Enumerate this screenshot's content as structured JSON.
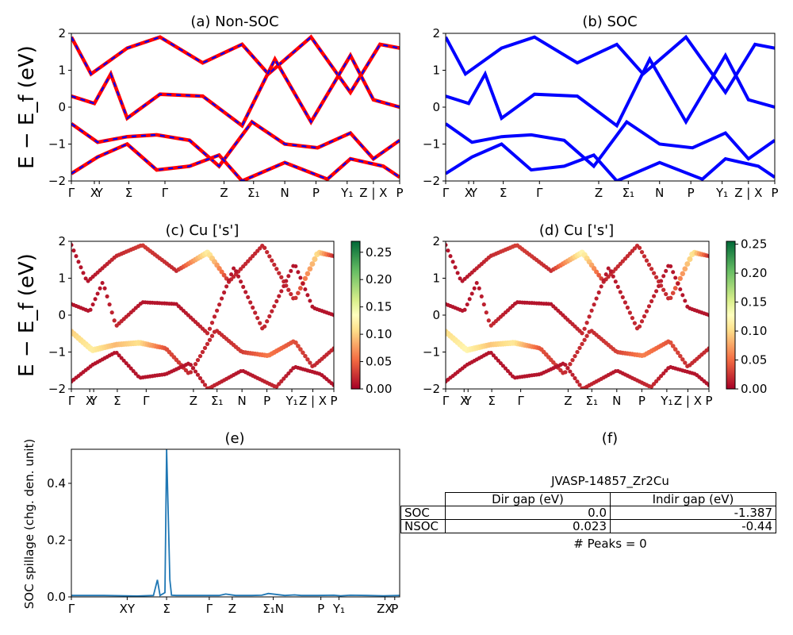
{
  "colors": {
    "nonsoc_red": "#ff0000",
    "soc_blue": "#0000ff",
    "spillage_line": "#1f77b4",
    "colormap": "RdYlGn"
  },
  "chart_data": [
    {
      "id": "a",
      "type": "line",
      "title": "(a) Non-SOC",
      "ylabel": "E − E_f (eV)",
      "ylim": [
        -2,
        2
      ],
      "yticks": [
        "−2",
        "−1",
        "0",
        "1",
        "2"
      ],
      "kpath_labels": [
        "Γ",
        "X",
        "Y",
        "Σ",
        "Γ",
        "Z",
        "Σ₁",
        "N",
        "P",
        "Y₁",
        "Z | X",
        "P"
      ],
      "series": [
        {
          "values_desc": "band_1",
          "x": [
            0,
            0.06,
            0.17,
            0.27,
            0.4,
            0.52,
            0.6,
            0.73,
            0.85,
            0.94,
            1.0
          ],
          "y": [
            1.9,
            0.9,
            1.6,
            1.9,
            1.2,
            1.7,
            0.9,
            1.9,
            0.4,
            1.7,
            1.6
          ]
        },
        {
          "values_desc": "band_2",
          "x": [
            0,
            0.07,
            0.12,
            0.17,
            0.27,
            0.4,
            0.52,
            0.62,
            0.73,
            0.85,
            0.92,
            1.0
          ],
          "y": [
            0.3,
            0.1,
            0.9,
            -0.3,
            0.35,
            0.3,
            -0.5,
            1.3,
            -0.4,
            1.4,
            0.2,
            0.0
          ]
        },
        {
          "values_desc": "band_3",
          "x": [
            0,
            0.08,
            0.17,
            0.26,
            0.36,
            0.45,
            0.55,
            0.65,
            0.75,
            0.85,
            0.92,
            1.0
          ],
          "y": [
            -0.45,
            -0.95,
            -0.8,
            -0.75,
            -0.9,
            -1.6,
            -0.4,
            -1.0,
            -1.1,
            -0.7,
            -1.4,
            -0.9
          ]
        },
        {
          "values_desc": "band_4",
          "x": [
            0,
            0.08,
            0.17,
            0.26,
            0.36,
            0.45,
            0.52,
            0.65,
            0.78,
            0.85,
            0.95,
            1.0
          ],
          "y": [
            -1.8,
            -1.35,
            -1.0,
            -1.7,
            -1.6,
            -1.3,
            -2.0,
            -1.5,
            -1.95,
            -1.4,
            -1.6,
            -1.9
          ]
        }
      ]
    },
    {
      "id": "b",
      "type": "line",
      "title": "(b) SOC",
      "ylim": [
        -2,
        2
      ],
      "yticks": [
        "−2",
        "−1",
        "0",
        "1",
        "2"
      ],
      "kpath_labels": [
        "Γ",
        "X",
        "Y",
        "Σ",
        "Γ",
        "Z",
        "Σ₁",
        "N",
        "P",
        "Y₁",
        "Z | X",
        "P"
      ],
      "series": [
        {
          "values_desc": "band_1",
          "x": [
            0,
            0.06,
            0.17,
            0.27,
            0.4,
            0.52,
            0.6,
            0.73,
            0.85,
            0.94,
            1.0
          ],
          "y": [
            1.9,
            0.9,
            1.6,
            1.9,
            1.2,
            1.7,
            0.9,
            1.9,
            0.4,
            1.7,
            1.6
          ]
        },
        {
          "values_desc": "band_2",
          "x": [
            0,
            0.07,
            0.12,
            0.17,
            0.27,
            0.4,
            0.52,
            0.62,
            0.73,
            0.85,
            0.92,
            1.0
          ],
          "y": [
            0.3,
            0.1,
            0.9,
            -0.3,
            0.35,
            0.3,
            -0.5,
            1.3,
            -0.4,
            1.4,
            0.2,
            0.0
          ]
        },
        {
          "values_desc": "band_3",
          "x": [
            0,
            0.08,
            0.17,
            0.26,
            0.36,
            0.45,
            0.55,
            0.65,
            0.75,
            0.85,
            0.92,
            1.0
          ],
          "y": [
            -0.45,
            -0.95,
            -0.8,
            -0.75,
            -0.9,
            -1.6,
            -0.4,
            -1.0,
            -1.1,
            -0.7,
            -1.4,
            -0.9
          ]
        },
        {
          "values_desc": "band_4",
          "x": [
            0,
            0.08,
            0.17,
            0.26,
            0.36,
            0.45,
            0.52,
            0.65,
            0.78,
            0.85,
            0.95,
            1.0
          ],
          "y": [
            -1.8,
            -1.35,
            -1.0,
            -1.7,
            -1.6,
            -1.3,
            -2.0,
            -1.5,
            -1.95,
            -1.4,
            -1.6,
            -1.9
          ]
        }
      ]
    },
    {
      "id": "c",
      "type": "scatter",
      "title": "(c)  Cu ['s']",
      "ylabel": "E − E_f (eV)",
      "ylim": [
        -2,
        2
      ],
      "yticks": [
        "−2",
        "−1",
        "0",
        "1",
        "2"
      ],
      "kpath_labels": [
        "Γ",
        "X",
        "Y",
        "Σ",
        "Γ",
        "Z",
        "Σ₁",
        "N",
        "P",
        "Y₁",
        "Z | X",
        "P"
      ],
      "colorbar": {
        "min": 0.0,
        "max": 0.27,
        "ticks": [
          "0.00",
          "0.05",
          "0.10",
          "0.15",
          "0.20",
          "0.25"
        ]
      },
      "series": [
        {
          "values_desc": "band_1",
          "x": [
            0,
            0.06,
            0.17,
            0.27,
            0.4,
            0.52,
            0.6,
            0.73,
            0.85,
            0.94,
            1.0
          ],
          "y": [
            1.9,
            0.9,
            1.6,
            1.9,
            1.2,
            1.7,
            0.9,
            1.9,
            0.4,
            1.7,
            1.6
          ],
          "w": [
            0.01,
            0.01,
            0.02,
            0.03,
            0.02,
            0.12,
            0.02,
            0.02,
            0.02,
            0.11,
            0.02
          ]
        },
        {
          "values_desc": "band_2",
          "x": [
            0,
            0.07,
            0.12,
            0.17,
            0.27,
            0.4,
            0.52,
            0.62,
            0.73,
            0.85,
            0.92,
            1.0
          ],
          "y": [
            0.3,
            0.1,
            0.9,
            -0.3,
            0.35,
            0.3,
            -0.5,
            1.3,
            -0.4,
            1.4,
            0.2,
            0.0
          ],
          "w": [
            0.01,
            0.01,
            0.01,
            0.02,
            0.01,
            0.01,
            0.02,
            0.01,
            0.02,
            0.01,
            0.01,
            0.01
          ]
        },
        {
          "values_desc": "band_3",
          "x": [
            0,
            0.08,
            0.17,
            0.26,
            0.36,
            0.45,
            0.55,
            0.65,
            0.75,
            0.85,
            0.92,
            1.0
          ],
          "y": [
            -0.45,
            -0.95,
            -0.8,
            -0.75,
            -0.9,
            -1.6,
            -0.4,
            -1.0,
            -1.1,
            -0.7,
            -1.4,
            -0.9
          ],
          "w": [
            0.1,
            0.12,
            0.09,
            0.11,
            0.04,
            0.02,
            0.02,
            0.03,
            0.06,
            0.04,
            0.02,
            0.02
          ]
        },
        {
          "values_desc": "band_4",
          "x": [
            0,
            0.08,
            0.17,
            0.26,
            0.36,
            0.45,
            0.52,
            0.65,
            0.78,
            0.85,
            0.95,
            1.0
          ],
          "y": [
            -1.8,
            -1.35,
            -1.0,
            -1.7,
            -1.6,
            -1.3,
            -2.0,
            -1.5,
            -1.95,
            -1.4,
            -1.6,
            -1.9
          ],
          "w": [
            0.01,
            0.01,
            0.01,
            0.01,
            0.01,
            0.01,
            0.02,
            0.01,
            0.02,
            0.01,
            0.01,
            0.01
          ]
        }
      ]
    },
    {
      "id": "d",
      "type": "scatter",
      "title": "(d) Cu ['s']",
      "ylim": [
        -2,
        2
      ],
      "yticks": [
        "−2",
        "−1",
        "0",
        "1",
        "2"
      ],
      "kpath_labels": [
        "Γ",
        "X",
        "Y",
        "Σ",
        "Γ",
        "Z",
        "Σ₁",
        "N",
        "P",
        "Y₁",
        "Z | X",
        "P"
      ],
      "colorbar": {
        "min": 0.0,
        "max": 0.255,
        "ticks": [
          "0.00",
          "0.05",
          "0.10",
          "0.15",
          "0.20",
          "0.25"
        ]
      },
      "series": [
        {
          "values_desc": "band_1",
          "x": [
            0,
            0.06,
            0.17,
            0.27,
            0.4,
            0.52,
            0.6,
            0.73,
            0.85,
            0.94,
            1.0
          ],
          "y": [
            1.9,
            0.9,
            1.6,
            1.9,
            1.2,
            1.7,
            0.9,
            1.9,
            0.4,
            1.7,
            1.6
          ],
          "w": [
            0.01,
            0.01,
            0.02,
            0.03,
            0.02,
            0.12,
            0.02,
            0.02,
            0.02,
            0.11,
            0.02
          ]
        },
        {
          "values_desc": "band_2",
          "x": [
            0,
            0.07,
            0.12,
            0.17,
            0.27,
            0.4,
            0.52,
            0.62,
            0.73,
            0.85,
            0.92,
            1.0
          ],
          "y": [
            0.3,
            0.1,
            0.9,
            -0.3,
            0.35,
            0.3,
            -0.5,
            1.3,
            -0.4,
            1.4,
            0.2,
            0.0
          ],
          "w": [
            0.01,
            0.01,
            0.01,
            0.02,
            0.01,
            0.01,
            0.02,
            0.01,
            0.02,
            0.01,
            0.01,
            0.01
          ]
        },
        {
          "values_desc": "band_3",
          "x": [
            0,
            0.08,
            0.17,
            0.26,
            0.36,
            0.45,
            0.55,
            0.65,
            0.75,
            0.85,
            0.92,
            1.0
          ],
          "y": [
            -0.45,
            -0.95,
            -0.8,
            -0.75,
            -0.9,
            -1.6,
            -0.4,
            -1.0,
            -1.1,
            -0.7,
            -1.4,
            -0.9
          ],
          "w": [
            0.1,
            0.12,
            0.09,
            0.11,
            0.04,
            0.02,
            0.02,
            0.03,
            0.06,
            0.04,
            0.02,
            0.02
          ]
        },
        {
          "values_desc": "band_4",
          "x": [
            0,
            0.08,
            0.17,
            0.26,
            0.36,
            0.45,
            0.52,
            0.65,
            0.78,
            0.85,
            0.95,
            1.0
          ],
          "y": [
            -1.8,
            -1.35,
            -1.0,
            -1.7,
            -1.6,
            -1.3,
            -2.0,
            -1.5,
            -1.95,
            -1.4,
            -1.6,
            -1.9
          ],
          "w": [
            0.01,
            0.01,
            0.01,
            0.01,
            0.01,
            0.01,
            0.02,
            0.01,
            0.02,
            0.01,
            0.01,
            0.01
          ]
        }
      ]
    },
    {
      "id": "e",
      "type": "line",
      "title": "(e)",
      "ylabel": "SOC spillage (chg. den. unit)",
      "ylim": [
        0,
        0.52
      ],
      "yticks": [
        "0.0",
        "0.2",
        "0.4"
      ],
      "kpath_labels": [
        "Γ",
        "XY",
        "Σ",
        "Γ",
        "Z",
        "Σ₁N",
        "P",
        "Y₁",
        "ZX",
        "P"
      ],
      "series": [
        {
          "values_desc": "spillage",
          "x": [
            0,
            0.1,
            0.2,
            0.25,
            0.262,
            0.27,
            0.285,
            0.29,
            0.3,
            0.305,
            0.32,
            0.35,
            0.4,
            0.45,
            0.47,
            0.5,
            0.55,
            0.58,
            0.6,
            0.65,
            0.68,
            0.7,
            0.75,
            0.8,
            0.82,
            0.85,
            0.9,
            0.95,
            1.0
          ],
          "y": [
            0.005,
            0.005,
            0.003,
            0.005,
            0.06,
            0.005,
            0.015,
            0.52,
            0.06,
            0.006,
            0.005,
            0.005,
            0.005,
            0.005,
            0.01,
            0.005,
            0.005,
            0.006,
            0.012,
            0.005,
            0.007,
            0.005,
            0.005,
            0.006,
            0.004,
            0.006,
            0.005,
            0.004,
            0.005
          ]
        }
      ]
    }
  ],
  "panel_f": {
    "title": "(f)",
    "material": "JVASP-14857_Zr2Cu",
    "table": {
      "headers": [
        "Dir gap (eV)",
        "Indir gap (eV)"
      ],
      "rows": [
        {
          "label": "SOC",
          "dir": "0.0",
          "indir": "-1.387"
        },
        {
          "label": "NSOC",
          "dir": "0.023",
          "indir": "-0.44"
        }
      ]
    },
    "peaks": "# Peaks = 0"
  }
}
